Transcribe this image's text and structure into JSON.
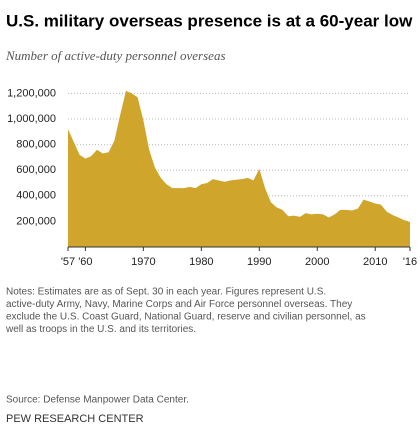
{
  "chart_data": {
    "type": "area",
    "title": "U.S. military overseas presence is at a 60-year low",
    "subtitle": "Number of active-duty personnel overseas",
    "x": [
      1957,
      1958,
      1959,
      1960,
      1961,
      1962,
      1963,
      1964,
      1965,
      1966,
      1967,
      1968,
      1969,
      1970,
      1971,
      1972,
      1973,
      1974,
      1975,
      1976,
      1977,
      1978,
      1979,
      1980,
      1981,
      1982,
      1983,
      1984,
      1985,
      1986,
      1987,
      1988,
      1989,
      1990,
      1991,
      1992,
      1993,
      1994,
      1995,
      1996,
      1997,
      1998,
      1999,
      2000,
      2001,
      2002,
      2003,
      2004,
      2005,
      2006,
      2007,
      2008,
      2009,
      2010,
      2011,
      2012,
      2013,
      2014,
      2015,
      2016
    ],
    "values": [
      920000,
      820000,
      720000,
      690000,
      710000,
      760000,
      730000,
      740000,
      830000,
      1030000,
      1220000,
      1200000,
      1170000,
      990000,
      760000,
      620000,
      540000,
      490000,
      460000,
      460000,
      460000,
      470000,
      460000,
      490000,
      500000,
      530000,
      520000,
      510000,
      520000,
      525000,
      530000,
      540000,
      520000,
      610000,
      460000,
      350000,
      310000,
      290000,
      240000,
      245000,
      235000,
      265000,
      255000,
      260000,
      255000,
      230000,
      255000,
      290000,
      290000,
      285000,
      300000,
      370000,
      355000,
      340000,
      330000,
      275000,
      250000,
      230000,
      210000,
      195000
    ],
    "color": "#cfa52c",
    "xlim": [
      1957,
      2016
    ],
    "xticks": [
      {
        "value": 1957,
        "label": "'57"
      },
      {
        "value": 1960,
        "label": "'60"
      },
      1970,
      1980,
      1990,
      2000,
      2010,
      {
        "value": 2016,
        "label": "'16"
      }
    ],
    "ylim": [
      0,
      1250000
    ],
    "yticks": [
      {
        "value": 200000,
        "label": "200,000"
      },
      {
        "value": 400000,
        "label": "400,000"
      },
      {
        "value": 600000,
        "label": "600,000"
      },
      {
        "value": 800000,
        "label": "800,000"
      },
      {
        "value": 1000000,
        "label": "1,000,000"
      },
      {
        "value": 1200000,
        "label": "1,200,000"
      }
    ],
    "grid": true,
    "notes": [
      "Notes: Estimates are as of Sept. 30 in each year. Figures represent U.S.",
      "active-duty Army, Navy, Marine Corps and Air Force personnel overseas. They",
      "exclude the U.S. Coast Guard, National Guard, reserve and civilian personnel, as",
      "well as troops in the U.S. and its territories."
    ],
    "source": "Source: Defense Manpower Data Center.",
    "credit": "PEW RESEARCH CENTER"
  }
}
